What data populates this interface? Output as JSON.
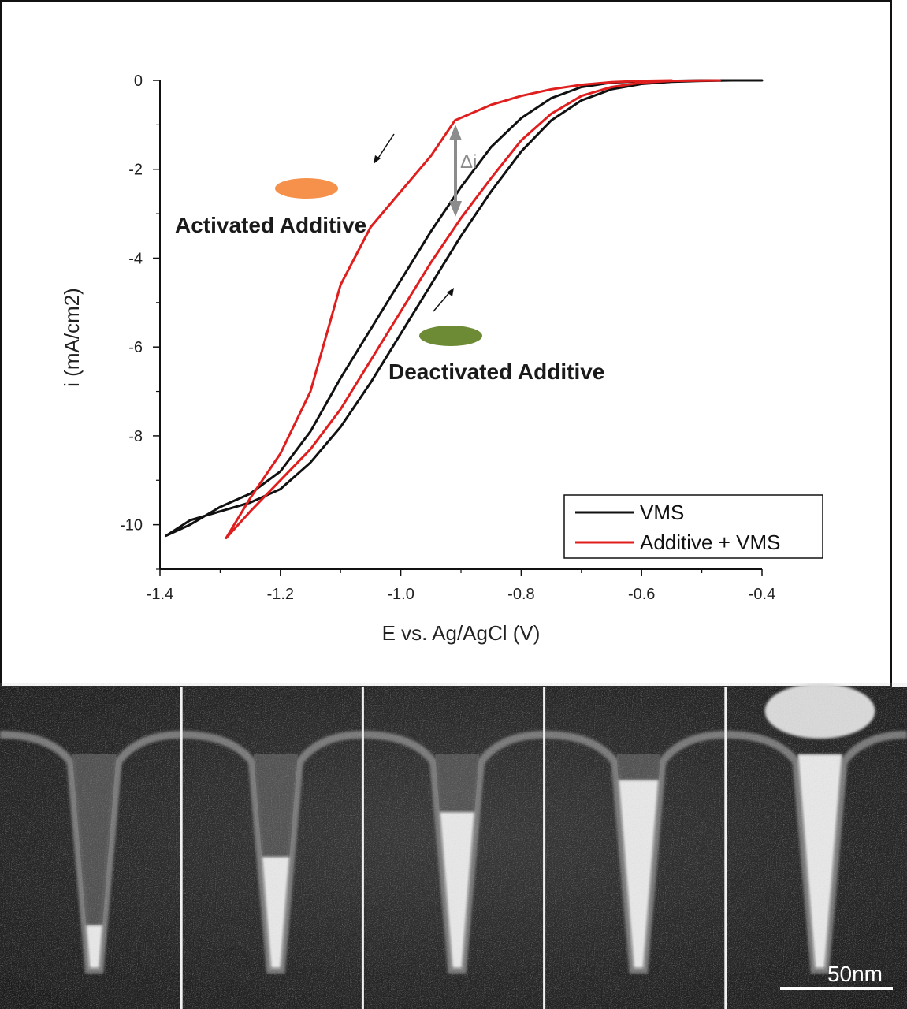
{
  "chart_data": {
    "type": "line",
    "title": "",
    "xlabel": "E vs. Ag/AgCl (V)",
    "ylabel": "i (mA/cm2)",
    "xlim": [
      -1.4,
      -0.4
    ],
    "ylim": [
      -11,
      0
    ],
    "x_ticks": [
      -1.4,
      -1.2,
      -1.0,
      -0.8,
      -0.6,
      -0.4
    ],
    "x_tick_labels": [
      "-1.4",
      "-1.2",
      "-1.0",
      "-0.8",
      "-0.6",
      "-0.4"
    ],
    "y_ticks": [
      0,
      -2,
      -4,
      -6,
      -8,
      -10
    ],
    "y_tick_labels": [
      "0",
      "-2",
      "-4",
      "-6",
      "-8",
      "-10"
    ],
    "legend_position": "bottom-right",
    "series": [
      {
        "name": "VMS",
        "color": "#111111",
        "x": [
          -0.4,
          -0.45,
          -0.5,
          -0.55,
          -0.6,
          -0.65,
          -0.7,
          -0.75,
          -0.8,
          -0.85,
          -0.9,
          -0.95,
          -1.0,
          -1.05,
          -1.1,
          -1.15,
          -1.2,
          -1.25,
          -1.3,
          -1.35,
          -1.39,
          -1.35,
          -1.3,
          -1.25,
          -1.2,
          -1.15,
          -1.1,
          -1.05,
          -1.0,
          -0.95,
          -0.9,
          -0.85,
          -0.8,
          -0.75,
          -0.7,
          -0.65,
          -0.6,
          -0.55,
          -0.5,
          -0.45
        ],
        "y": [
          0.0,
          0.0,
          -0.01,
          -0.03,
          -0.08,
          -0.2,
          -0.45,
          -0.9,
          -1.6,
          -2.5,
          -3.5,
          -4.6,
          -5.7,
          -6.8,
          -7.8,
          -8.6,
          -9.2,
          -9.5,
          -9.7,
          -9.9,
          -10.25,
          -10.0,
          -9.6,
          -9.3,
          -8.8,
          -7.9,
          -6.7,
          -5.6,
          -4.5,
          -3.4,
          -2.4,
          -1.5,
          -0.85,
          -0.4,
          -0.15,
          -0.05,
          -0.02,
          -0.01,
          0.0,
          0.0
        ]
      },
      {
        "name": "Additive + VMS",
        "color": "#e01e1e",
        "x": [
          -0.47,
          -0.55,
          -0.6,
          -0.65,
          -0.7,
          -0.75,
          -0.8,
          -0.85,
          -0.9,
          -0.95,
          -1.0,
          -1.05,
          -1.1,
          -1.15,
          -1.2,
          -1.25,
          -1.29,
          -1.25,
          -1.2,
          -1.15,
          -1.1,
          -1.05,
          -1.0,
          -0.95,
          -0.91,
          -0.85,
          -0.8,
          -0.75,
          -0.7,
          -0.65,
          -0.6,
          -0.55
        ],
        "y": [
          0.0,
          -0.01,
          -0.05,
          -0.15,
          -0.35,
          -0.75,
          -1.35,
          -2.2,
          -3.1,
          -4.1,
          -5.2,
          -6.3,
          -7.4,
          -8.3,
          -9.0,
          -9.7,
          -10.3,
          -9.4,
          -8.4,
          -7.0,
          -4.6,
          -3.3,
          -2.5,
          -1.7,
          -0.9,
          -0.55,
          -0.35,
          -0.2,
          -0.1,
          -0.04,
          -0.01,
          0.0
        ]
      }
    ],
    "annotations": {
      "activated": "Activated Additive",
      "deactivated": "Deactivated Additive",
      "delta": "Δi"
    }
  },
  "colors": {
    "activated_marker": "#f5914a",
    "deactivated_marker": "#6d8a35",
    "delta_arrow": "#8c8c8c"
  },
  "micrographs": {
    "panel_count": 5,
    "fill_fraction": [
      0.2,
      0.52,
      0.73,
      0.88,
      1.0
    ],
    "scale_bar_label": "50nm"
  }
}
